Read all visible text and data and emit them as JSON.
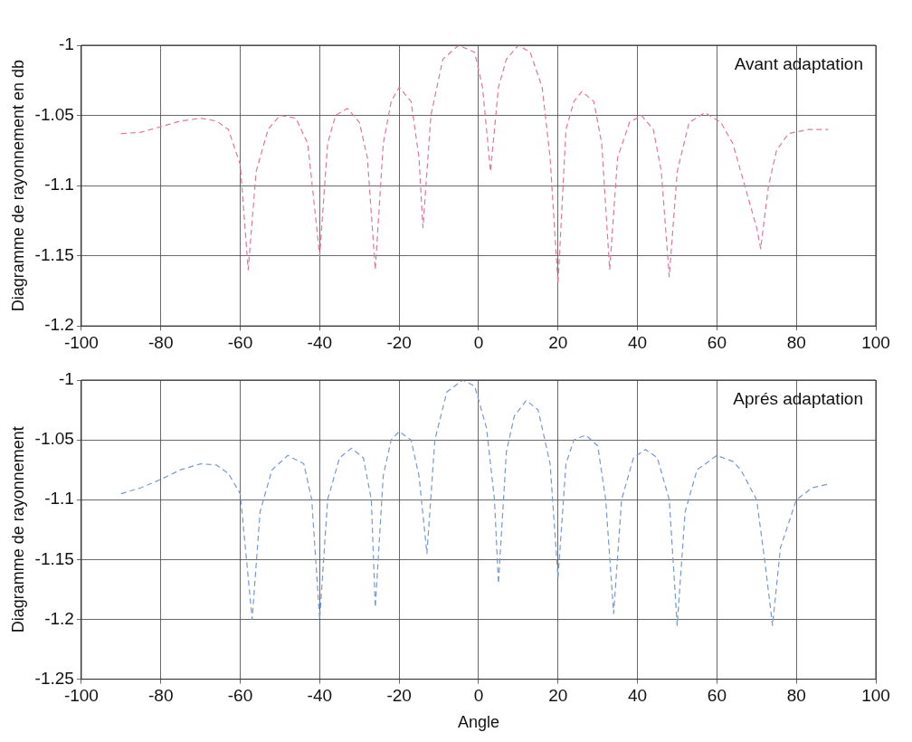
{
  "chart_data": [
    {
      "type": "line",
      "ylabel": "Diagramme de rayonnement en db",
      "annotations": [
        "Avant adaptation"
      ],
      "line_style": "dashed",
      "grid": true,
      "xlim": [
        -100,
        100
      ],
      "xticks": [
        -100,
        -80,
        -60,
        -40,
        -20,
        0,
        20,
        40,
        60,
        80,
        100
      ],
      "ylim": [
        -1.2,
        -1
      ],
      "yticks": [
        -1.2,
        -1.15,
        -1.1,
        -1.05,
        -1
      ],
      "series": [
        {
          "color": "#e07898",
          "x": [
            -90,
            -85,
            -80,
            -75,
            -70,
            -66,
            -63,
            -60,
            -58,
            -56,
            -53,
            -50,
            -46,
            -43,
            -40,
            -38,
            -36,
            -33,
            -30,
            -28,
            -26,
            -24,
            -22,
            -20,
            -17,
            -15,
            -14,
            -12,
            -9,
            -5,
            -1,
            1,
            3,
            5,
            7,
            10,
            13,
            16,
            18,
            20,
            22,
            24,
            26,
            29,
            31,
            33,
            35,
            38,
            41,
            44,
            46,
            48,
            50,
            53,
            57,
            61,
            64,
            67,
            70,
            71,
            73,
            75,
            78,
            83,
            88
          ],
          "values": [
            -1.063,
            -1.062,
            -1.058,
            -1.054,
            -1.052,
            -1.054,
            -1.06,
            -1.085,
            -1.16,
            -1.09,
            -1.06,
            -1.05,
            -1.052,
            -1.07,
            -1.15,
            -1.07,
            -1.05,
            -1.045,
            -1.055,
            -1.08,
            -1.16,
            -1.07,
            -1.04,
            -1.03,
            -1.04,
            -1.08,
            -1.13,
            -1.05,
            -1.01,
            -1.0,
            -1.005,
            -1.03,
            -1.09,
            -1.03,
            -1.01,
            -1.0,
            -1.005,
            -1.03,
            -1.08,
            -1.17,
            -1.06,
            -1.04,
            -1.033,
            -1.04,
            -1.07,
            -1.16,
            -1.08,
            -1.055,
            -1.05,
            -1.06,
            -1.09,
            -1.165,
            -1.09,
            -1.055,
            -1.048,
            -1.055,
            -1.07,
            -1.1,
            -1.13,
            -1.145,
            -1.1,
            -1.075,
            -1.063,
            -1.06,
            -1.06
          ]
        }
      ]
    },
    {
      "type": "line",
      "xlabel": "Angle",
      "ylabel": "Diagramme de rayonnement",
      "annotations": [
        "Aprés adaptation"
      ],
      "line_style": "dashed",
      "grid": true,
      "xlim": [
        -100,
        100
      ],
      "xticks": [
        -100,
        -80,
        -60,
        -40,
        -20,
        0,
        20,
        40,
        60,
        80,
        100
      ],
      "ylim": [
        -1.25,
        -1
      ],
      "yticks": [
        -1.25,
        -1.2,
        -1.15,
        -1.1,
        -1.05,
        -1
      ],
      "series": [
        {
          "color": "#7898d0",
          "x": [
            -90,
            -85,
            -80,
            -75,
            -70,
            -66,
            -63,
            -60,
            -57,
            -55,
            -52,
            -48,
            -44,
            -42,
            -40,
            -38,
            -35,
            -32,
            -29,
            -27,
            -26,
            -24,
            -22,
            -20,
            -17,
            -15,
            -13,
            -11,
            -8,
            -4,
            -1,
            2,
            4,
            5,
            7,
            9,
            12,
            15,
            18,
            20,
            22,
            24,
            27,
            30,
            32,
            34,
            36,
            39,
            42,
            45,
            48,
            50,
            52,
            55,
            60,
            64,
            66,
            70,
            72,
            74,
            76,
            80,
            84,
            88
          ],
          "values": [
            -1.095,
            -1.09,
            -1.083,
            -1.075,
            -1.07,
            -1.071,
            -1.078,
            -1.095,
            -1.2,
            -1.11,
            -1.075,
            -1.063,
            -1.07,
            -1.1,
            -1.2,
            -1.1,
            -1.065,
            -1.057,
            -1.065,
            -1.1,
            -1.19,
            -1.08,
            -1.05,
            -1.043,
            -1.05,
            -1.08,
            -1.145,
            -1.05,
            -1.01,
            -1.0,
            -1.005,
            -1.04,
            -1.1,
            -1.17,
            -1.06,
            -1.03,
            -1.017,
            -1.025,
            -1.07,
            -1.165,
            -1.07,
            -1.05,
            -1.046,
            -1.055,
            -1.1,
            -1.195,
            -1.1,
            -1.065,
            -1.058,
            -1.065,
            -1.1,
            -1.205,
            -1.11,
            -1.075,
            -1.063,
            -1.068,
            -1.075,
            -1.1,
            -1.15,
            -1.205,
            -1.14,
            -1.1,
            -1.09,
            -1.087
          ]
        }
      ]
    }
  ]
}
